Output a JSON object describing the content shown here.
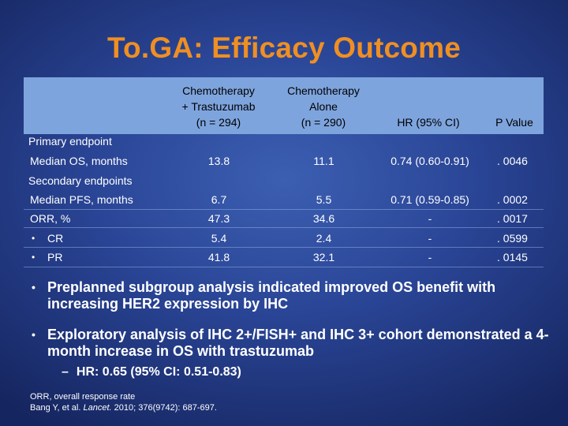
{
  "title": "To.GA: Efficacy Outcome",
  "table": {
    "columns": [
      {
        "lines": [
          "Chemotherapy",
          "+ Trastuzumab",
          "(n = 294)"
        ]
      },
      {
        "lines": [
          "Chemotherapy",
          "Alone",
          "(n = 290)"
        ]
      },
      {
        "lines": [
          "HR (95% CI)"
        ]
      },
      {
        "lines": [
          "P Value"
        ]
      }
    ],
    "sections": {
      "primary": "Primary endpoint",
      "secondary": "Secondary endpoints"
    },
    "rows": [
      {
        "label": "Median OS, months",
        "bullet": "",
        "cells": [
          "13.8",
          "11.1",
          "0.74 (0.60-0.91)",
          ". 0046"
        ]
      },
      {
        "label": "Median PFS, months",
        "bullet": "",
        "cells": [
          "6.7",
          "5.5",
          "0.71 (0.59-0.85)",
          ". 0002"
        ]
      },
      {
        "label": "ORR, %",
        "bullet": "",
        "cells": [
          "47.3",
          "34.6",
          "-",
          ". 0017"
        ]
      },
      {
        "label": "CR",
        "bullet": "•",
        "cells": [
          "5.4",
          "2.4",
          "-",
          ". 0599"
        ]
      },
      {
        "label": "PR",
        "bullet": "•",
        "cells": [
          "41.8",
          "32.1",
          "-",
          ". 0145"
        ]
      }
    ]
  },
  "bullets": [
    {
      "marker": "•",
      "text": "Preplanned subgroup analysis indicated improved OS benefit with increasing HER2 expression by IHC"
    },
    {
      "marker": "•",
      "text": "Exploratory analysis of IHC 2+/FISH+ and IHC 3+ cohort demonstrated a 4-month increase in OS with trastuzumab"
    }
  ],
  "sub_bullet": {
    "marker": "–",
    "text": "HR: 0.65 (95% CI: 0.51-0.83)"
  },
  "footnotes": {
    "abbrev": "ORR, overall response rate",
    "citation_prefix": "Bang Y, et al. ",
    "citation_journal": "Lancet.",
    "citation_suffix": " 2010; 376(9742): 687-697."
  },
  "colors": {
    "title": "#ef8f22",
    "header_band": "#7ea4de",
    "background": "#2a4596"
  }
}
